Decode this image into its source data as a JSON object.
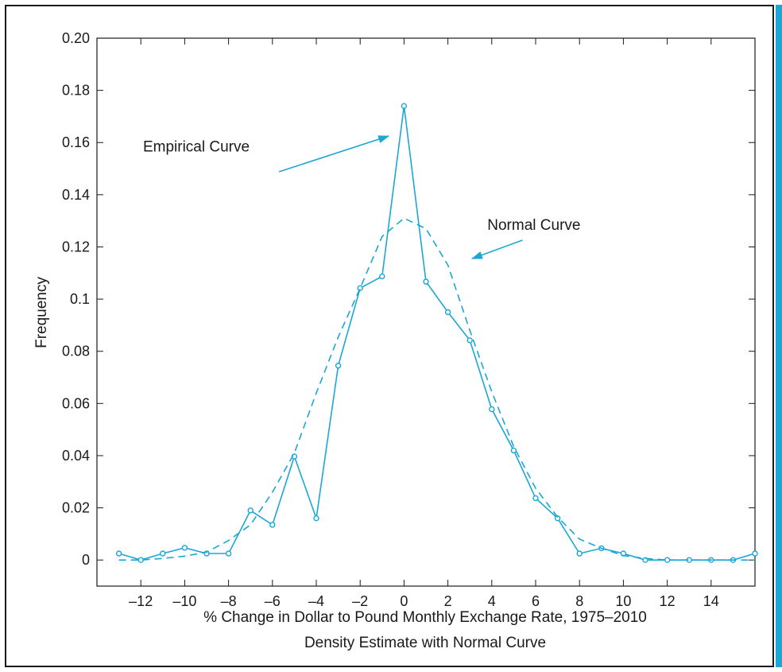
{
  "chart_data": {
    "type": "line",
    "title": "",
    "xlabel": "% Change in Dollar to Pound Monthly Exchange Rate, 1975–2010",
    "subtitle": "Density Estimate with Normal Curve",
    "ylabel": "Frequency",
    "xlim": [
      -14,
      16
    ],
    "ylim": [
      -0.01,
      0.2
    ],
    "x_ticks": [
      {
        "value": -12,
        "label": "–12"
      },
      {
        "value": -10,
        "label": "–10"
      },
      {
        "value": -8,
        "label": "–8"
      },
      {
        "value": -6,
        "label": "–6"
      },
      {
        "value": -4,
        "label": "–4"
      },
      {
        "value": -2,
        "label": "–2"
      },
      {
        "value": 0,
        "label": "0"
      },
      {
        "value": 2,
        "label": "2"
      },
      {
        "value": 4,
        "label": "4"
      },
      {
        "value": 6,
        "label": "6"
      },
      {
        "value": 8,
        "label": "8"
      },
      {
        "value": 10,
        "label": "10"
      },
      {
        "value": 12,
        "label": "12"
      },
      {
        "value": 14,
        "label": "14"
      }
    ],
    "y_ticks": [
      {
        "value": 0,
        "label": "0"
      },
      {
        "value": 0.02,
        "label": "0.02"
      },
      {
        "value": 0.04,
        "label": "0.04"
      },
      {
        "value": 0.06,
        "label": "0.06"
      },
      {
        "value": 0.08,
        "label": "0.08"
      },
      {
        "value": 0.1,
        "label": "0.1"
      },
      {
        "value": 0.12,
        "label": "0.12"
      },
      {
        "value": 0.14,
        "label": "0.14"
      },
      {
        "value": 0.16,
        "label": "0.16"
      },
      {
        "value": 0.18,
        "label": "0.18"
      },
      {
        "value": 0.2,
        "label": "0.20"
      }
    ],
    "grid": false,
    "series": [
      {
        "style": "solid-with-circles",
        "color": "#1aa7d6",
        "x": [
          -13,
          -12,
          -11,
          -10,
          -9,
          -8,
          -7,
          -6,
          -5,
          -4,
          -3,
          -2,
          -1,
          0,
          1,
          2,
          3,
          4,
          5,
          6,
          7,
          8,
          9,
          10,
          11,
          12,
          13,
          14,
          15,
          16
        ],
        "y": [
          0.0025,
          0.0,
          0.0025,
          0.0047,
          0.0025,
          0.0025,
          0.019,
          0.0135,
          0.0397,
          0.016,
          0.0745,
          0.1042,
          0.1087,
          0.174,
          0.1067,
          0.095,
          0.0842,
          0.0578,
          0.042,
          0.0237,
          0.016,
          0.0025,
          0.0045,
          0.0025,
          0.0,
          0.0,
          0.0,
          0.0,
          0.0,
          0.0025
        ]
      },
      {
        "style": "dashed",
        "color": "#1aa7d6",
        "x": [
          -13,
          -12,
          -11,
          -10,
          -9,
          -8,
          -7,
          -6,
          -5,
          -4,
          -3,
          -2,
          -1,
          0,
          1,
          2,
          3,
          4,
          5,
          6,
          7,
          8,
          9,
          10,
          11,
          12,
          13,
          14,
          15,
          16
        ],
        "y": [
          0.0,
          0.0,
          0.0006,
          0.0015,
          0.003,
          0.0075,
          0.0135,
          0.026,
          0.041,
          0.064,
          0.0855,
          0.1042,
          0.124,
          0.131,
          0.127,
          0.113,
          0.088,
          0.0645,
          0.0435,
          0.0275,
          0.0165,
          0.008,
          0.0045,
          0.0017,
          0.0006,
          0.0,
          0.0,
          0.0,
          0.0,
          0.0
        ]
      }
    ],
    "annotations": [
      {
        "text": "Empirical Curve",
        "text_at": [
          -11.9,
          0.1565
        ],
        "arrow_from": [
          -5.7,
          0.1488
        ],
        "arrow_to": [
          -0.7,
          0.1625
        ]
      },
      {
        "text": "Normal Curve",
        "text_at": [
          3.8,
          0.1265
        ],
        "arrow_from": [
          5.4,
          0.1226
        ],
        "arrow_to": [
          3.1,
          0.1155
        ]
      }
    ]
  }
}
